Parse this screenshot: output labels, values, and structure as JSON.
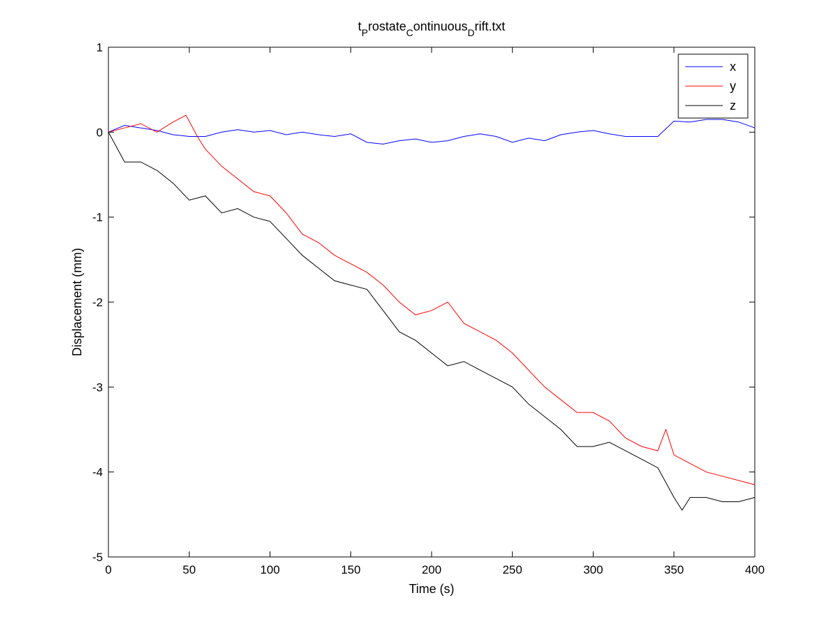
{
  "chart_data": {
    "type": "line",
    "title": {
      "parts": [
        {
          "text": "t",
          "sub": false
        },
        {
          "text": "P",
          "sub": true
        },
        {
          "text": "rostate",
          "sub": false
        },
        {
          "text": "C",
          "sub": true
        },
        {
          "text": "ontinuous",
          "sub": false
        },
        {
          "text": "D",
          "sub": true
        },
        {
          "text": "rift.txt",
          "sub": false
        }
      ]
    },
    "xlabel": "Time (s)",
    "ylabel": "Displacement (mm)",
    "xlim": [
      0,
      400
    ],
    "ylim": [
      -5,
      1
    ],
    "xticks": [
      0,
      50,
      100,
      150,
      200,
      250,
      300,
      350,
      400
    ],
    "yticks": [
      -5,
      -4,
      -3,
      -2,
      -1,
      0,
      1
    ],
    "grid": false,
    "legend_position": "top-right",
    "series": [
      {
        "name": "x",
        "color": "#0000ff",
        "x": [
          0,
          10,
          20,
          30,
          40,
          50,
          60,
          70,
          80,
          90,
          100,
          110,
          120,
          130,
          140,
          150,
          160,
          170,
          180,
          190,
          200,
          210,
          220,
          230,
          240,
          250,
          260,
          270,
          280,
          290,
          300,
          310,
          320,
          330,
          340,
          350,
          360,
          370,
          380,
          390,
          400
        ],
        "y": [
          0.0,
          0.08,
          0.05,
          0.02,
          -0.03,
          -0.05,
          -0.05,
          0.0,
          0.03,
          0.0,
          0.02,
          -0.03,
          0.0,
          -0.03,
          -0.05,
          -0.02,
          -0.12,
          -0.14,
          -0.1,
          -0.08,
          -0.12,
          -0.1,
          -0.05,
          -0.02,
          -0.05,
          -0.12,
          -0.07,
          -0.1,
          -0.03,
          0.0,
          0.02,
          -0.02,
          -0.05,
          -0.05,
          -0.05,
          0.13,
          0.12,
          0.15,
          0.15,
          0.12,
          0.05
        ]
      },
      {
        "name": "y",
        "color": "#ff0000",
        "x": [
          0,
          10,
          20,
          30,
          40,
          48,
          55,
          60,
          70,
          80,
          90,
          100,
          110,
          120,
          130,
          140,
          150,
          160,
          170,
          180,
          190,
          200,
          210,
          220,
          230,
          240,
          250,
          260,
          270,
          280,
          290,
          300,
          310,
          320,
          330,
          340,
          345,
          350,
          360,
          370,
          380,
          390,
          400
        ],
        "y": [
          0.0,
          0.05,
          0.1,
          0.0,
          0.12,
          0.2,
          -0.05,
          -0.2,
          -0.4,
          -0.55,
          -0.7,
          -0.75,
          -0.95,
          -1.2,
          -1.3,
          -1.45,
          -1.55,
          -1.65,
          -1.8,
          -2.0,
          -2.15,
          -2.1,
          -2.0,
          -2.25,
          -2.35,
          -2.45,
          -2.6,
          -2.8,
          -3.0,
          -3.15,
          -3.3,
          -3.3,
          -3.4,
          -3.6,
          -3.7,
          -3.75,
          -3.5,
          -3.8,
          -3.9,
          -4.0,
          -4.05,
          -4.1,
          -4.15
        ]
      },
      {
        "name": "z",
        "color": "#000000",
        "x": [
          0,
          10,
          20,
          30,
          40,
          50,
          60,
          70,
          80,
          90,
          100,
          110,
          120,
          130,
          140,
          150,
          160,
          170,
          180,
          190,
          200,
          210,
          220,
          230,
          240,
          250,
          260,
          270,
          280,
          290,
          300,
          310,
          320,
          330,
          340,
          350,
          355,
          360,
          370,
          380,
          390,
          400
        ],
        "y": [
          0.0,
          -0.35,
          -0.35,
          -0.45,
          -0.6,
          -0.8,
          -0.75,
          -0.95,
          -0.9,
          -1.0,
          -1.05,
          -1.25,
          -1.45,
          -1.6,
          -1.75,
          -1.8,
          -1.85,
          -2.1,
          -2.35,
          -2.45,
          -2.6,
          -2.75,
          -2.7,
          -2.8,
          -2.9,
          -3.0,
          -3.2,
          -3.35,
          -3.5,
          -3.7,
          -3.7,
          -3.65,
          -3.75,
          -3.85,
          -3.95,
          -4.3,
          -4.45,
          -4.3,
          -4.3,
          -4.35,
          -4.35,
          -4.3
        ]
      }
    ]
  }
}
